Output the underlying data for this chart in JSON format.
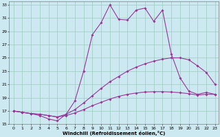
{
  "xlabel": "Windchill (Refroidissement éolien,°C)",
  "xlim_min": -0.5,
  "xlim_max": 23.4,
  "ylim_min": 15.0,
  "ylim_max": 33.5,
  "yticks": [
    15,
    17,
    19,
    21,
    23,
    25,
    27,
    29,
    31,
    33
  ],
  "xticks": [
    0,
    1,
    2,
    3,
    4,
    5,
    6,
    7,
    8,
    9,
    10,
    11,
    12,
    13,
    14,
    15,
    16,
    17,
    18,
    19,
    20,
    21,
    22,
    23
  ],
  "background_color": "#cce8f0",
  "grid_color": "#99ccbb",
  "line_color": "#993399",
  "line1_y": [
    17.0,
    16.8,
    16.6,
    16.5,
    16.3,
    16.1,
    16.3,
    16.7,
    17.2,
    17.8,
    18.3,
    18.8,
    19.2,
    19.5,
    19.7,
    19.85,
    19.9,
    19.9,
    19.85,
    19.75,
    19.6,
    19.4,
    19.5,
    19.5
  ],
  "line2_y": [
    17.0,
    16.8,
    16.6,
    16.5,
    16.3,
    16.1,
    16.5,
    17.2,
    18.2,
    19.3,
    20.4,
    21.4,
    22.2,
    23.0,
    23.6,
    24.1,
    24.5,
    24.8,
    25.0,
    25.0,
    24.7,
    23.8,
    22.8,
    21.0
  ],
  "line3_y": [
    17.0,
    16.8,
    16.6,
    16.3,
    15.8,
    15.5,
    16.5,
    18.5,
    23.0,
    28.5,
    30.3,
    33.0,
    30.8,
    30.7,
    32.2,
    32.5,
    30.5,
    32.2,
    25.6,
    22.0,
    20.0,
    19.5,
    19.8,
    19.5
  ]
}
